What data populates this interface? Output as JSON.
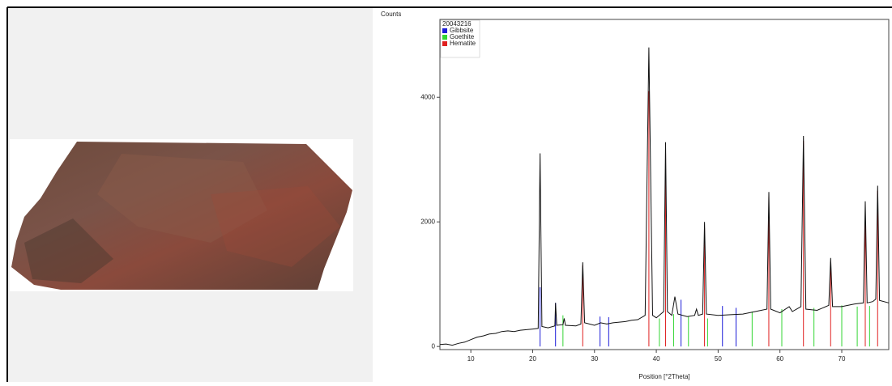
{
  "chart_data": {
    "type": "line",
    "ylabel": "Counts",
    "xlabel": "Position [°2Theta]",
    "legend_title": "20043216",
    "xlim": [
      5,
      77.6
    ],
    "ylim": [
      -50,
      5250
    ],
    "xticks": [
      10,
      20,
      30,
      40,
      50,
      60,
      70
    ],
    "yticks": [
      0,
      2000,
      4000
    ],
    "pattern": {
      "color": "#111111",
      "x": [
        5,
        6,
        7,
        8,
        9,
        10,
        11,
        12,
        13,
        14,
        15,
        16,
        17,
        18,
        19,
        20,
        20.9,
        21.2,
        21.5,
        22.5,
        23.6,
        23.7,
        23.9,
        24.9,
        25.1,
        25.3,
        27,
        27.8,
        28.1,
        28.4,
        30,
        31,
        32,
        33,
        34,
        35,
        36,
        37,
        38.2,
        38.8,
        39.4,
        40,
        41.2,
        41.5,
        41.8,
        42.5,
        43,
        43.5,
        45,
        46.2,
        46.5,
        46.8,
        47.5,
        47.8,
        48.1,
        50,
        52,
        54,
        56,
        57.9,
        58.2,
        58.5,
        60,
        61.5,
        62,
        63.4,
        63.8,
        64.2,
        66,
        67.9,
        68.2,
        68.5,
        70,
        72,
        73.5,
        73.8,
        74.1,
        75,
        75.5,
        75.8,
        76.1,
        77.6
      ],
      "values": [
        30,
        40,
        20,
        50,
        70,
        110,
        150,
        170,
        200,
        210,
        240,
        250,
        240,
        260,
        270,
        280,
        290,
        3100,
        320,
        300,
        330,
        700,
        340,
        350,
        450,
        340,
        330,
        360,
        1350,
        380,
        340,
        380,
        360,
        380,
        390,
        400,
        420,
        430,
        500,
        4800,
        500,
        460,
        560,
        3280,
        560,
        500,
        800,
        520,
        480,
        500,
        600,
        500,
        520,
        2000,
        520,
        500,
        510,
        520,
        560,
        600,
        2480,
        600,
        540,
        640,
        560,
        640,
        3380,
        600,
        580,
        660,
        1420,
        640,
        640,
        680,
        700,
        2330,
        700,
        720,
        760,
        2580,
        740,
        700
      ]
    },
    "series": [
      {
        "name": "Gibbsite",
        "color": "#1c1cd8",
        "x": [
          21.2,
          23.7,
          30.9,
          32.3,
          44.0,
          50.7,
          52.9
        ],
        "values": [
          950,
          700,
          480,
          470,
          750,
          650,
          620
        ]
      },
      {
        "name": "Goethite",
        "color": "#33d633",
        "x": [
          24.9,
          40.5,
          42.8,
          45.2,
          48.3,
          55.5,
          60.3,
          65.5,
          70.0,
          72.5,
          74.5
        ],
        "values": [
          500,
          450,
          520,
          480,
          450,
          560,
          600,
          620,
          660,
          640,
          650
        ]
      },
      {
        "name": "Hematite",
        "color": "#e02020",
        "x": [
          28.1,
          38.8,
          41.5,
          47.8,
          58.2,
          63.8,
          68.2,
          73.8,
          75.8
        ],
        "values": [
          1300,
          4100,
          3100,
          1900,
          2400,
          3300,
          1350,
          2250,
          2500
        ]
      }
    ]
  }
}
